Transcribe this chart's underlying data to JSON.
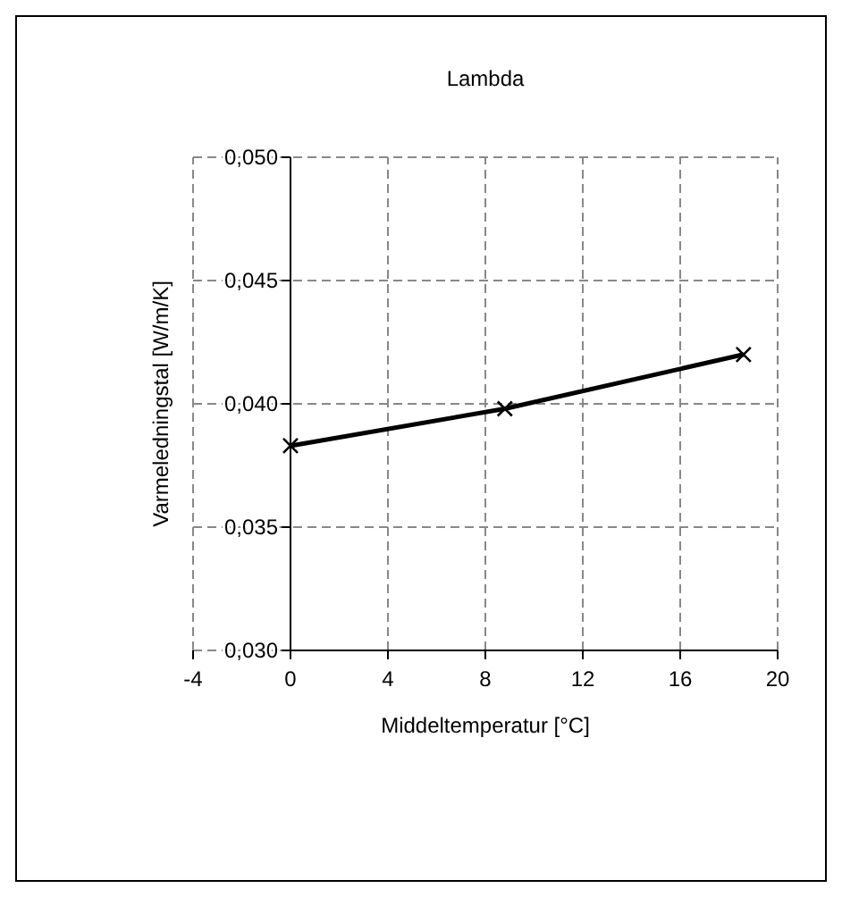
{
  "chart_data": {
    "type": "line",
    "title": "Lambda",
    "xlabel": "Middeltemperatur [°C]",
    "ylabel": "Varmeledningstal [W/m/K]",
    "x": [
      0,
      8.8,
      18.6
    ],
    "series": [
      {
        "color": "#000000",
        "values": [
          0.0383,
          0.0398,
          0.042
        ]
      }
    ],
    "xlim": [
      -4,
      20
    ],
    "xticks": [
      -4,
      0,
      4,
      8,
      12,
      16,
      20
    ],
    "ylim": [
      0.03,
      0.05
    ],
    "yticks": [
      {
        "value": 0.03,
        "label": "0,030"
      },
      {
        "value": 0.035,
        "label": "0,035"
      },
      {
        "value": 0.04,
        "label": "0,040"
      },
      {
        "value": 0.045,
        "label": "0,045"
      },
      {
        "value": 0.05,
        "label": "0,050"
      }
    ],
    "grid": true,
    "marker": "cross",
    "line_style": "solid"
  }
}
